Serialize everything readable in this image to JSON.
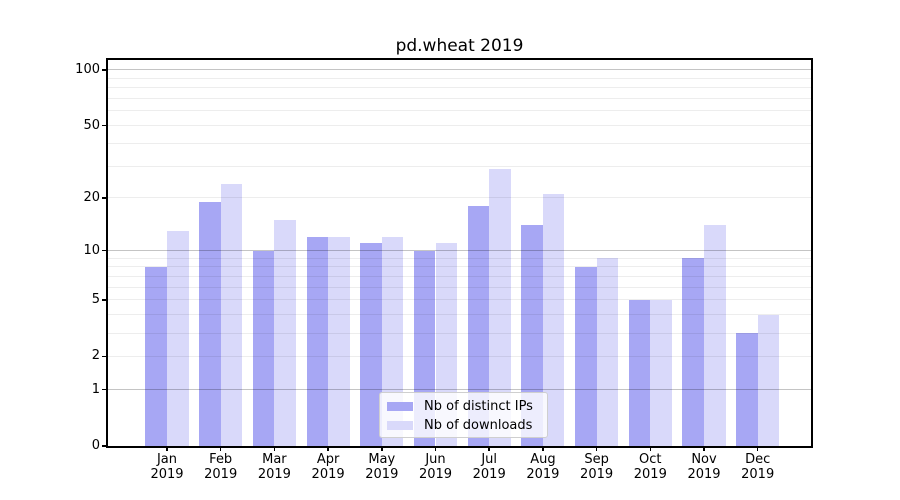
{
  "title": "pd.wheat 2019",
  "chart_data": {
    "type": "bar",
    "title": "pd.wheat 2019",
    "x": {
      "months": [
        "Jan",
        "Feb",
        "Mar",
        "Apr",
        "May",
        "Jun",
        "Jul",
        "Aug",
        "Sep",
        "Oct",
        "Nov",
        "Dec"
      ],
      "year": "2019"
    },
    "series": [
      {
        "name": "Nb of distinct IPs",
        "color": "#a7a7f4",
        "values": [
          8,
          19,
          10,
          12,
          11,
          10,
          18,
          14,
          8,
          5,
          9,
          3
        ]
      },
      {
        "name": "Nb of downloads",
        "color": "#d9d9fa",
        "values": [
          13,
          24,
          15,
          12,
          12,
          11,
          29,
          21,
          9,
          5,
          14,
          4
        ]
      }
    ],
    "y_axis": {
      "scale": "log1p",
      "ylim": [
        0,
        113
      ],
      "tick_labels": [
        0,
        1,
        2,
        5,
        10,
        20,
        50,
        100
      ],
      "major_gridlines": [
        1,
        10,
        100
      ],
      "minor_gridlines": [
        2,
        3,
        4,
        5,
        6,
        7,
        8,
        9,
        20,
        30,
        40,
        50,
        60,
        70,
        80,
        90
      ]
    },
    "legend": {
      "position": "lower center"
    },
    "grid": "on"
  }
}
